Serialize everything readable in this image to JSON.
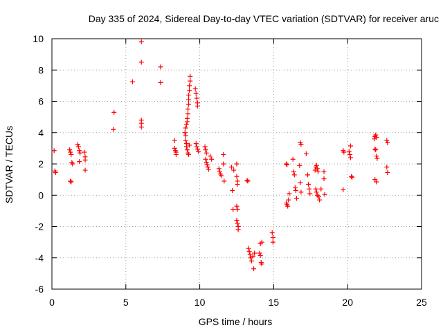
{
  "chart_data": {
    "type": "scatter",
    "title": "Day 335 of 2024, Sidereal Day-to-day VTEC variation (SDTVAR) for receiver aruc",
    "xlabel": "GPS time / hours",
    "ylabel": "SDTVAR / TECUs",
    "xlim": [
      0,
      25
    ],
    "ylim": [
      -6,
      10
    ],
    "xticks": [
      0,
      5,
      10,
      15,
      20,
      25
    ],
    "yticks": [
      -6,
      -4,
      -2,
      0,
      2,
      4,
      6,
      8,
      10
    ],
    "grid": true,
    "marker": "plus",
    "color": "#ff0000",
    "series": [
      {
        "name": "SDTVAR",
        "points": [
          [
            0.15,
            2.85
          ],
          [
            0.2,
            1.55
          ],
          [
            0.25,
            1.45
          ],
          [
            1.2,
            2.9
          ],
          [
            1.25,
            2.75
          ],
          [
            1.3,
            2.6
          ],
          [
            1.35,
            2.1
          ],
          [
            1.4,
            2.0
          ],
          [
            1.25,
            0.9
          ],
          [
            1.3,
            0.85
          ],
          [
            1.75,
            3.25
          ],
          [
            1.8,
            3.1
          ],
          [
            1.85,
            2.85
          ],
          [
            1.9,
            2.7
          ],
          [
            1.85,
            2.15
          ],
          [
            2.2,
            2.75
          ],
          [
            2.25,
            2.45
          ],
          [
            2.25,
            2.25
          ],
          [
            2.25,
            1.6
          ],
          [
            4.2,
            5.3
          ],
          [
            4.15,
            4.2
          ],
          [
            5.45,
            7.25
          ],
          [
            6.05,
            9.8
          ],
          [
            6.05,
            8.5
          ],
          [
            6.05,
            4.8
          ],
          [
            6.05,
            4.6
          ],
          [
            6.05,
            4.35
          ],
          [
            7.35,
            8.2
          ],
          [
            7.35,
            7.2
          ],
          [
            8.3,
            3.5
          ],
          [
            8.3,
            3.0
          ],
          [
            8.35,
            2.85
          ],
          [
            8.4,
            2.75
          ],
          [
            8.4,
            2.6
          ],
          [
            9.0,
            4.0
          ],
          [
            9.05,
            4.3
          ],
          [
            9.1,
            4.5
          ],
          [
            9.15,
            4.7
          ],
          [
            9.15,
            4.9
          ],
          [
            9.2,
            5.2
          ],
          [
            9.2,
            5.5
          ],
          [
            9.25,
            5.8
          ],
          [
            9.25,
            6.1
          ],
          [
            9.25,
            6.4
          ],
          [
            9.3,
            6.7
          ],
          [
            9.3,
            7.0
          ],
          [
            9.35,
            7.3
          ],
          [
            9.35,
            7.6
          ],
          [
            9.05,
            3.8
          ],
          [
            9.05,
            3.5
          ],
          [
            9.1,
            3.3
          ],
          [
            9.1,
            3.1
          ],
          [
            9.15,
            2.9
          ],
          [
            9.2,
            2.7
          ],
          [
            9.25,
            2.6
          ],
          [
            9.3,
            3.2
          ],
          [
            9.7,
            6.8
          ],
          [
            9.75,
            6.5
          ],
          [
            9.8,
            6.2
          ],
          [
            9.85,
            5.9
          ],
          [
            9.85,
            5.7
          ],
          [
            9.75,
            3.3
          ],
          [
            9.8,
            3.1
          ],
          [
            9.85,
            2.95
          ],
          [
            9.9,
            2.8
          ],
          [
            10.35,
            3.1
          ],
          [
            10.4,
            2.9
          ],
          [
            10.45,
            2.7
          ],
          [
            10.4,
            2.3
          ],
          [
            10.45,
            2.1
          ],
          [
            10.5,
            1.95
          ],
          [
            10.55,
            1.8
          ],
          [
            10.6,
            1.65
          ],
          [
            10.7,
            2.5
          ],
          [
            10.8,
            2.3
          ],
          [
            11.3,
            1.7
          ],
          [
            11.35,
            1.5
          ],
          [
            11.4,
            1.35
          ],
          [
            11.45,
            1.25
          ],
          [
            11.6,
            2.6
          ],
          [
            11.6,
            2.0
          ],
          [
            11.65,
            0.9
          ],
          [
            12.15,
            1.8
          ],
          [
            12.2,
            0.3
          ],
          [
            12.25,
            -0.9
          ],
          [
            12.3,
            1.6
          ],
          [
            12.5,
            2.0
          ],
          [
            12.5,
            1.2
          ],
          [
            12.55,
            0.9
          ],
          [
            12.55,
            0.7
          ],
          [
            12.5,
            -0.7
          ],
          [
            12.55,
            -0.9
          ],
          [
            12.5,
            -1.6
          ],
          [
            12.55,
            -1.8
          ],
          [
            12.6,
            -2.0
          ],
          [
            12.6,
            -2.2
          ],
          [
            13.2,
            0.95
          ],
          [
            13.25,
            0.9
          ],
          [
            13.3,
            -3.4
          ],
          [
            13.35,
            -3.6
          ],
          [
            13.4,
            -3.8
          ],
          [
            13.45,
            -4.0
          ],
          [
            13.5,
            -4.2
          ],
          [
            13.6,
            -3.9
          ],
          [
            13.65,
            -4.7
          ],
          [
            13.7,
            -3.7
          ],
          [
            14.05,
            -3.7
          ],
          [
            14.1,
            -3.85
          ],
          [
            14.15,
            -4.3
          ],
          [
            14.2,
            -4.4
          ],
          [
            14.1,
            -3.1
          ],
          [
            14.2,
            -3.0
          ],
          [
            14.9,
            -2.4
          ],
          [
            14.95,
            -2.7
          ],
          [
            14.95,
            -3.0
          ],
          [
            15.85,
            2.0
          ],
          [
            15.9,
            1.95
          ],
          [
            15.85,
            -0.5
          ],
          [
            15.9,
            -0.6
          ],
          [
            15.95,
            -0.7
          ],
          [
            16.0,
            -0.3
          ],
          [
            16.05,
            0.1
          ],
          [
            16.3,
            2.3
          ],
          [
            16.35,
            1.5
          ],
          [
            16.4,
            1.3
          ],
          [
            16.45,
            0.5
          ],
          [
            16.5,
            0.3
          ],
          [
            16.55,
            -0.2
          ],
          [
            16.8,
            3.35
          ],
          [
            16.85,
            3.25
          ],
          [
            16.75,
            1.9
          ],
          [
            16.8,
            0.8
          ],
          [
            16.85,
            0.2
          ],
          [
            17.2,
            2.65
          ],
          [
            17.3,
            1.3
          ],
          [
            17.35,
            0.7
          ],
          [
            17.4,
            0.4
          ],
          [
            17.45,
            0.1
          ],
          [
            17.8,
            1.6
          ],
          [
            17.85,
            1.8
          ],
          [
            17.9,
            1.9
          ],
          [
            17.95,
            1.7
          ],
          [
            18.0,
            1.5
          ],
          [
            17.85,
            0.4
          ],
          [
            17.9,
            0.2
          ],
          [
            17.95,
            0.0
          ],
          [
            18.05,
            -0.1
          ],
          [
            18.1,
            -0.3
          ],
          [
            18.2,
            0.4
          ],
          [
            18.4,
            1.5
          ],
          [
            18.4,
            1.05
          ],
          [
            18.45,
            0.05
          ],
          [
            19.7,
            2.85
          ],
          [
            19.75,
            2.75
          ],
          [
            19.7,
            0.35
          ],
          [
            20.1,
            2.8
          ],
          [
            20.15,
            2.6
          ],
          [
            20.2,
            2.4
          ],
          [
            20.2,
            3.15
          ],
          [
            20.25,
            1.2
          ],
          [
            20.3,
            1.15
          ],
          [
            21.8,
            3.6
          ],
          [
            21.85,
            3.75
          ],
          [
            21.9,
            3.85
          ],
          [
            21.95,
            3.7
          ],
          [
            21.85,
            2.95
          ],
          [
            21.9,
            2.9
          ],
          [
            21.95,
            2.5
          ],
          [
            22.0,
            2.35
          ],
          [
            21.85,
            1.0
          ],
          [
            21.95,
            0.85
          ],
          [
            22.65,
            3.5
          ],
          [
            22.7,
            3.35
          ],
          [
            22.65,
            1.8
          ],
          [
            22.7,
            1.45
          ]
        ]
      }
    ]
  }
}
